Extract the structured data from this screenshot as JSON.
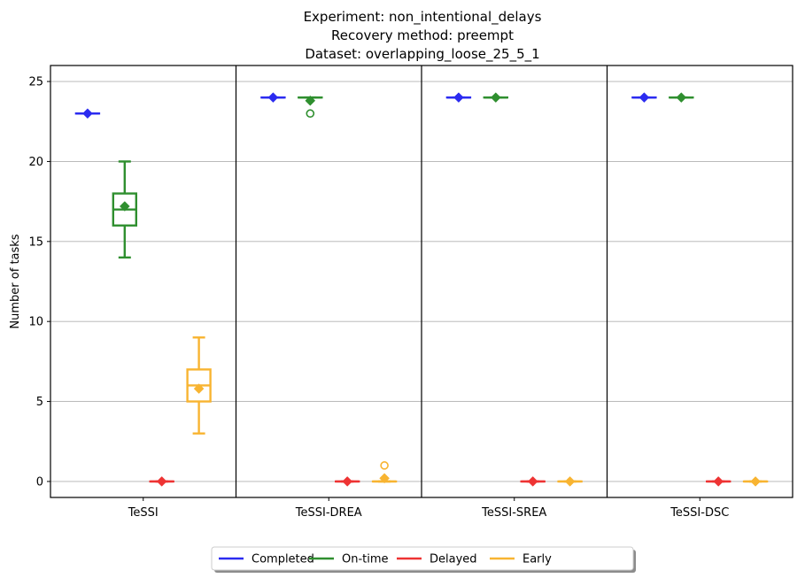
{
  "chart_data": {
    "type": "box",
    "title_lines": [
      "Experiment: non_intentional_delays",
      "Recovery method: preempt",
      "Dataset: overlapping_loose_25_5_1"
    ],
    "ylabel": "Number of tasks",
    "xlabel": "",
    "ylim": [
      -1,
      26
    ],
    "yticks": [
      0,
      5,
      10,
      15,
      20,
      25
    ],
    "grid": "horizontal",
    "legend_position": "bottom-center",
    "categories": [
      "TeSSI",
      "TeSSI-DREA",
      "TeSSI-SREA",
      "TeSSI-DSC"
    ],
    "series": [
      {
        "name": "Completed",
        "color": "#2b2bf0",
        "boxes": [
          {
            "min": 23,
            "q1": 23,
            "median": 23,
            "q3": 23,
            "max": 23,
            "mean": 23,
            "outliers": []
          },
          {
            "min": 24,
            "q1": 24,
            "median": 24,
            "q3": 24,
            "max": 24,
            "mean": 24,
            "outliers": []
          },
          {
            "min": 24,
            "q1": 24,
            "median": 24,
            "q3": 24,
            "max": 24,
            "mean": 24,
            "outliers": []
          },
          {
            "min": 24,
            "q1": 24,
            "median": 24,
            "q3": 24,
            "max": 24,
            "mean": 24,
            "outliers": []
          }
        ]
      },
      {
        "name": "On-time",
        "color": "#2f8f2f",
        "boxes": [
          {
            "min": 14,
            "q1": 16,
            "median": 17,
            "q3": 18,
            "max": 20,
            "mean": 17.2,
            "outliers": []
          },
          {
            "min": 24,
            "q1": 24,
            "median": 24,
            "q3": 24,
            "max": 24,
            "mean": 23.8,
            "outliers": [
              23
            ]
          },
          {
            "min": 24,
            "q1": 24,
            "median": 24,
            "q3": 24,
            "max": 24,
            "mean": 24,
            "outliers": []
          },
          {
            "min": 24,
            "q1": 24,
            "median": 24,
            "q3": 24,
            "max": 24,
            "mean": 24,
            "outliers": []
          }
        ]
      },
      {
        "name": "Delayed",
        "color": "#ee3333",
        "boxes": [
          {
            "min": 0,
            "q1": 0,
            "median": 0,
            "q3": 0,
            "max": 0,
            "mean": 0,
            "outliers": []
          },
          {
            "min": 0,
            "q1": 0,
            "median": 0,
            "q3": 0,
            "max": 0,
            "mean": 0,
            "outliers": []
          },
          {
            "min": 0,
            "q1": 0,
            "median": 0,
            "q3": 0,
            "max": 0,
            "mean": 0,
            "outliers": []
          },
          {
            "min": 0,
            "q1": 0,
            "median": 0,
            "q3": 0,
            "max": 0,
            "mean": 0,
            "outliers": []
          }
        ]
      },
      {
        "name": "Early",
        "color": "#f8b431",
        "boxes": [
          {
            "min": 3,
            "q1": 5,
            "median": 6,
            "q3": 7,
            "max": 9,
            "mean": 5.8,
            "outliers": []
          },
          {
            "min": 0,
            "q1": 0,
            "median": 0,
            "q3": 0,
            "max": 0,
            "mean": 0.2,
            "outliers": [
              1
            ]
          },
          {
            "min": 0,
            "q1": 0,
            "median": 0,
            "q3": 0,
            "max": 0,
            "mean": 0,
            "outliers": []
          },
          {
            "min": 0,
            "q1": 0,
            "median": 0,
            "q3": 0,
            "max": 0,
            "mean": 0,
            "outliers": []
          }
        ]
      }
    ]
  }
}
